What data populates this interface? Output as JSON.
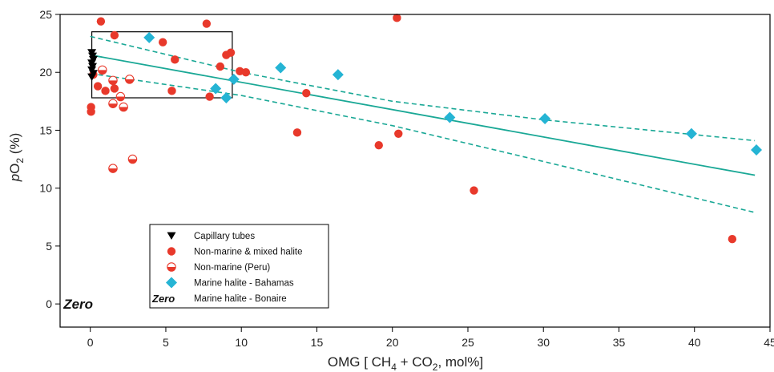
{
  "chart_data": {
    "type": "scatter",
    "xlabel": {
      "pre": "OMG [ CH",
      "sub1": "4",
      "mid": " + CO",
      "sub2": "2",
      "post": ", mol%]"
    },
    "ylabel": {
      "italic": "p",
      "pre": "O",
      "sub": "2",
      "post": " (%)"
    },
    "xlim": [
      -2,
      45
    ],
    "ylim": [
      -2,
      25
    ],
    "xticks": [
      0,
      5,
      10,
      15,
      20,
      25,
      30,
      35,
      40,
      45
    ],
    "yticks": [
      0,
      5,
      10,
      15,
      20,
      25
    ],
    "grid": false,
    "legend_position": "bottom-left",
    "series": [
      {
        "key": "capillary",
        "name": "Capillary tubes",
        "marker": "triangle-down",
        "color": "#000000",
        "points": [
          [
            0.1,
            21.7
          ],
          [
            0.15,
            21.4
          ],
          [
            0.2,
            21.1
          ],
          [
            0.1,
            20.8
          ],
          [
            0.15,
            20.5
          ],
          [
            0.1,
            20.2
          ],
          [
            0.2,
            19.9
          ],
          [
            0.1,
            19.6
          ]
        ]
      },
      {
        "key": "nonmarine",
        "name": "Non-marine & mixed halite",
        "marker": "circle",
        "color": "#e8392b",
        "points": [
          [
            0.7,
            24.4
          ],
          [
            1.6,
            23.2
          ],
          [
            4.8,
            22.6
          ],
          [
            7.7,
            24.2
          ],
          [
            20.3,
            24.7
          ],
          [
            5.6,
            21.1
          ],
          [
            9.0,
            21.5
          ],
          [
            9.3,
            21.7
          ],
          [
            8.6,
            20.5
          ],
          [
            9.9,
            20.1
          ],
          [
            10.3,
            20.0
          ],
          [
            0.2,
            19.8
          ],
          [
            0.5,
            18.8
          ],
          [
            1.0,
            18.4
          ],
          [
            1.6,
            18.6
          ],
          [
            5.4,
            18.4
          ],
          [
            7.9,
            17.9
          ],
          [
            14.3,
            18.2
          ],
          [
            0.05,
            17.0
          ],
          [
            0.05,
            16.6
          ],
          [
            13.7,
            14.8
          ],
          [
            19.1,
            13.7
          ],
          [
            20.4,
            14.7
          ],
          [
            25.4,
            9.8
          ],
          [
            42.5,
            5.6
          ]
        ]
      },
      {
        "key": "peru",
        "name": "Non-marine (Peru)",
        "marker": "half-circle",
        "color": "#e8392b",
        "points": [
          [
            0.8,
            20.2
          ],
          [
            1.5,
            19.3
          ],
          [
            2.6,
            19.4
          ],
          [
            1.5,
            17.3
          ],
          [
            2.0,
            17.9
          ],
          [
            2.2,
            17.0
          ],
          [
            1.5,
            11.7
          ],
          [
            2.8,
            12.5
          ]
        ]
      },
      {
        "key": "bahamas",
        "name": "Marine halite - Bahamas",
        "marker": "diamond",
        "color": "#25b4d4",
        "points": [
          [
            3.9,
            23.0
          ],
          [
            8.3,
            18.6
          ],
          [
            9.0,
            17.8
          ],
          [
            9.5,
            19.4
          ],
          [
            12.6,
            20.4
          ],
          [
            16.4,
            19.8
          ],
          [
            23.8,
            16.1
          ],
          [
            30.1,
            16.0
          ],
          [
            39.8,
            14.7
          ],
          [
            44.1,
            13.3
          ]
        ]
      },
      {
        "key": "bonaire",
        "name": "Marine halite - Bonaire",
        "marker": "text",
        "label": "Zero",
        "color": "#000000",
        "points": [
          [
            -1.3,
            0
          ]
        ]
      }
    ],
    "regression": {
      "color": "#1aa896",
      "slope": -0.236,
      "intercept": 21.5,
      "x_range": [
        0,
        44
      ]
    },
    "confidence_band": {
      "color": "#1aa896",
      "upper": [
        [
          0,
          23.1
        ],
        [
          10,
          20.0
        ],
        [
          20,
          17.5
        ],
        [
          30,
          15.9
        ],
        [
          44,
          14.1
        ]
      ],
      "lower": [
        [
          0,
          19.9
        ],
        [
          10,
          18.0
        ],
        [
          20,
          15.4
        ],
        [
          30,
          12.3
        ],
        [
          44,
          7.9
        ]
      ]
    },
    "box": {
      "x": [
        0.1,
        9.4
      ],
      "y": [
        17.8,
        23.5
      ],
      "color": "#000000"
    },
    "legend": [
      {
        "key": "capillary",
        "label": "Capillary tubes"
      },
      {
        "key": "nonmarine",
        "label": "Non-marine & mixed halite"
      },
      {
        "key": "peru",
        "label": "Non-marine (Peru)"
      },
      {
        "key": "bahamas",
        "label": "Marine halite - Bahamas"
      },
      {
        "key": "bonaire",
        "label": "Marine halite - Bonaire",
        "symbol_text": "Zero"
      }
    ]
  }
}
